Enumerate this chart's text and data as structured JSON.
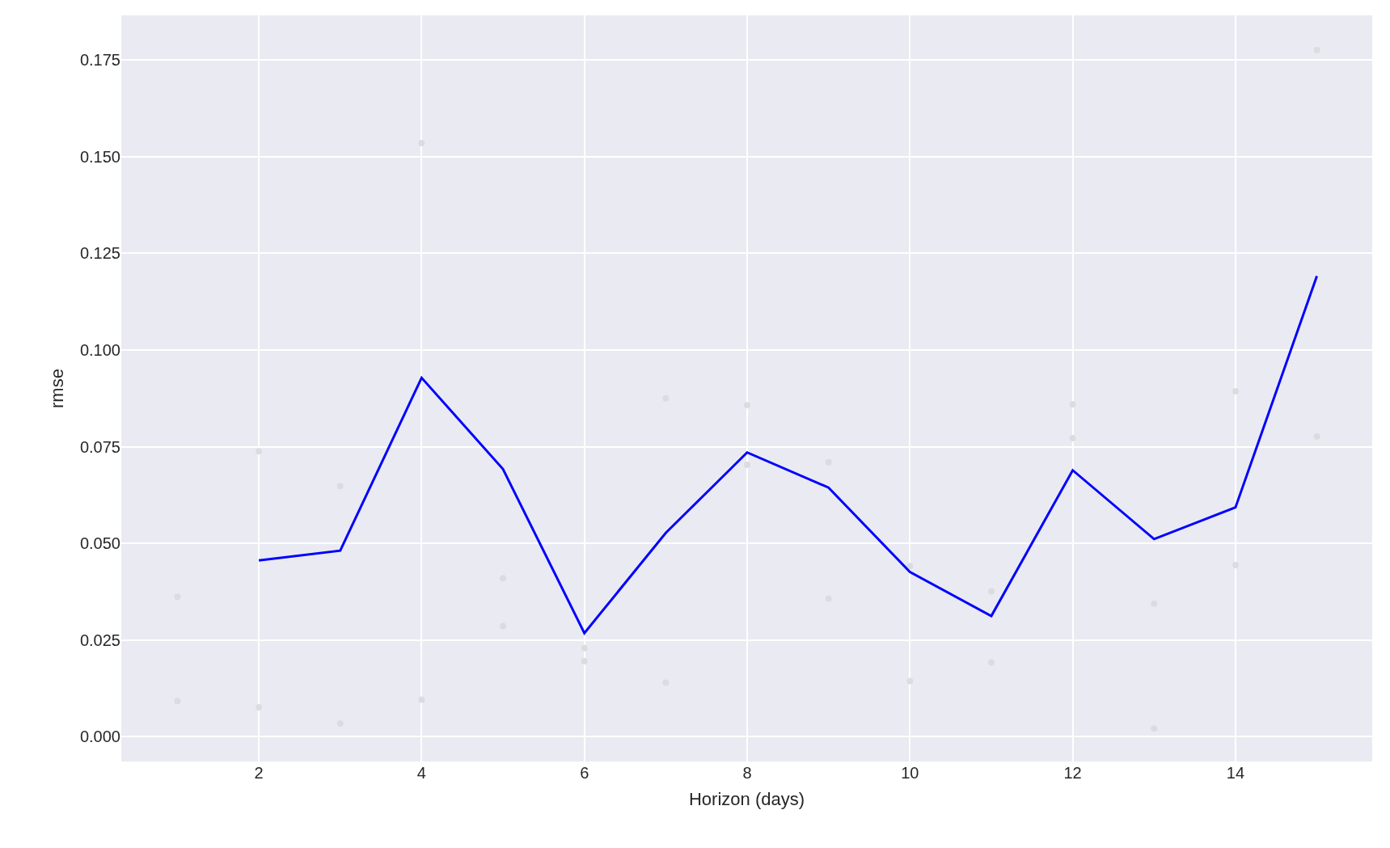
{
  "chart_data": {
    "type": "line",
    "xlabel": "Horizon (days)",
    "ylabel": "rmse",
    "series": [
      {
        "type": "scatter",
        "color": "#dcdce0",
        "x": [
          1,
          1,
          2,
          2,
          3,
          3,
          4,
          4,
          5,
          5,
          6,
          6,
          7,
          7,
          8,
          8,
          9,
          9,
          10,
          10,
          11,
          11,
          12,
          12,
          13,
          13,
          14,
          14,
          15,
          15
        ],
        "values": [
          0.0362,
          0.0092,
          0.0738,
          0.0076,
          0.0648,
          0.0034,
          0.1535,
          0.0096,
          0.041,
          0.0286,
          0.0229,
          0.0195,
          0.0875,
          0.014,
          0.0857,
          0.0703,
          0.071,
          0.0357,
          0.0441,
          0.0144,
          0.0376,
          0.0192,
          0.0859,
          0.0772,
          0.0344,
          0.0021,
          0.0893,
          0.0444,
          0.1775,
          0.0776
        ]
      },
      {
        "color": "#0000ff",
        "x": [
          2,
          3,
          4,
          5,
          6,
          7,
          8,
          9,
          10,
          11,
          12,
          13,
          14,
          15
        ],
        "values": [
          0.0456,
          0.0481,
          0.0928,
          0.0692,
          0.0268,
          0.0527,
          0.0735,
          0.0644,
          0.0426,
          0.0312,
          0.0689,
          0.0511,
          0.0593,
          0.1191
        ]
      }
    ],
    "xlim": [
      0.31,
      15.68
    ],
    "xticks": [
      2,
      4,
      6,
      8,
      10,
      12,
      14
    ],
    "ylim": [
      -0.0064,
      0.1865
    ],
    "yticks": [
      {
        "value": 0,
        "label": "0.000"
      },
      {
        "value": 0.025,
        "label": "0.025"
      },
      {
        "value": 0.05,
        "label": "0.050"
      },
      {
        "value": 0.075,
        "label": "0.075"
      },
      {
        "value": 0.1,
        "label": "0.100"
      },
      {
        "value": 0.125,
        "label": "0.125"
      },
      {
        "value": 0.15,
        "label": "0.150"
      },
      {
        "value": 0.175,
        "label": "0.175"
      }
    ],
    "grid": true
  }
}
